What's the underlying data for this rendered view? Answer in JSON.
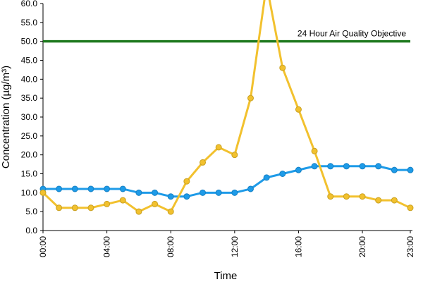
{
  "chart_data": {
    "type": "line",
    "title": "",
    "xlabel": "Time",
    "ylabel": "Concentration (µg/m³)",
    "x": [
      "00:00",
      "01:00",
      "02:00",
      "03:00",
      "04:00",
      "05:00",
      "06:00",
      "07:00",
      "08:00",
      "09:00",
      "10:00",
      "11:00",
      "12:00",
      "13:00",
      "14:00",
      "15:00",
      "16:00",
      "17:00",
      "18:00",
      "19:00",
      "20:00",
      "21:00",
      "22:00",
      "23:00"
    ],
    "x_tick_labels": [
      "00:00",
      "04:00",
      "08:00",
      "12:00",
      "16:00",
      "20:00",
      "23:00"
    ],
    "ylim": [
      0,
      60
    ],
    "y_tick_labels": [
      "0.0",
      "5.0",
      "10.0",
      "15.0",
      "20.0",
      "25.0",
      "30.0",
      "35.0",
      "40.0",
      "45.0",
      "50.0",
      "55.0",
      "60.0"
    ],
    "grid": false,
    "series": [
      {
        "color": "#1e9be8",
        "values": [
          11,
          11,
          11,
          11,
          11,
          11,
          10,
          10,
          9,
          9,
          10,
          10,
          10,
          11,
          14,
          15,
          16,
          17,
          17,
          17,
          17,
          17,
          16,
          16
        ]
      },
      {
        "color": "#f2c12e",
        "values": [
          10,
          6,
          6,
          6,
          7,
          8,
          5,
          7,
          5,
          13,
          18,
          22,
          20,
          35,
          65,
          43,
          32,
          21,
          9,
          9,
          9,
          8,
          8,
          6
        ]
      }
    ],
    "reference_line": {
      "value": 50,
      "label": "24 Hour Air Quality Objective",
      "color": "#1f7a1f"
    }
  }
}
